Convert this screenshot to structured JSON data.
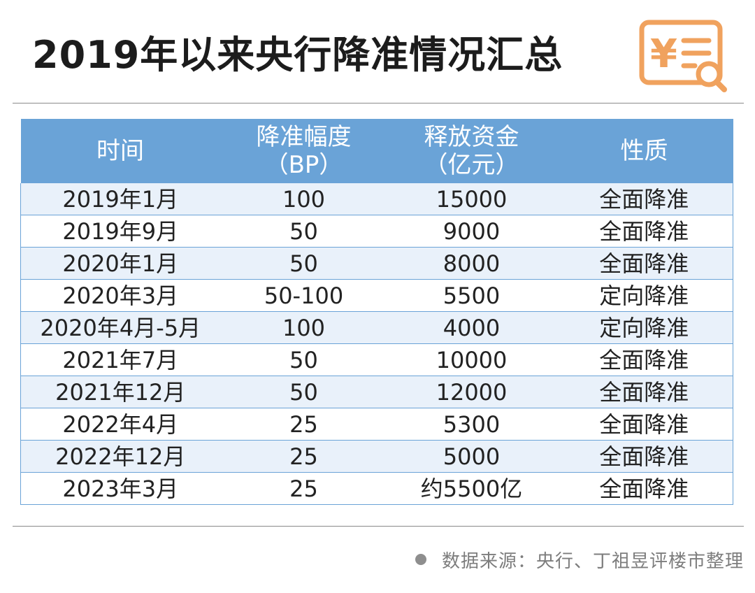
{
  "title": "2019年以来央行降准情况汇总",
  "colors": {
    "header_bg": "#6aa3d7",
    "row_alt_bg": "#e9f1fa",
    "logo_orange": "#f0a25e"
  },
  "logo": {
    "icon": "yuan-receipt-search-icon",
    "glyph": "¥"
  },
  "table": {
    "headers": [
      {
        "line1": "时间",
        "line2": ""
      },
      {
        "line1": "降准幅度",
        "line2": "（BP）"
      },
      {
        "line1": "释放资金",
        "line2": "（亿元）"
      },
      {
        "line1": "性质",
        "line2": ""
      }
    ],
    "rows": [
      {
        "time": "2019年1月",
        "bp": "100",
        "funds": "15000",
        "nature": "全面降准"
      },
      {
        "time": "2019年9月",
        "bp": "50",
        "funds": "9000",
        "nature": "全面降准"
      },
      {
        "time": "2020年1月",
        "bp": "50",
        "funds": "8000",
        "nature": "全面降准"
      },
      {
        "time": "2020年3月",
        "bp": "50-100",
        "funds": "5500",
        "nature": "定向降准"
      },
      {
        "time": "2020年4月-5月",
        "bp": "100",
        "funds": "4000",
        "nature": "定向降准"
      },
      {
        "time": "2021年7月",
        "bp": "50",
        "funds": "10000",
        "nature": "全面降准"
      },
      {
        "time": "2021年12月",
        "bp": "50",
        "funds": "12000",
        "nature": "全面降准"
      },
      {
        "time": "2022年4月",
        "bp": "25",
        "funds": "5300",
        "nature": "全面降准"
      },
      {
        "time": "2022年12月",
        "bp": "25",
        "funds": "5000",
        "nature": "全面降准"
      },
      {
        "time": "2023年3月",
        "bp": "25",
        "funds": "约5500亿",
        "nature": "全面降准"
      }
    ]
  },
  "source": "数据来源：央行、丁祖昱评楼市整理"
}
